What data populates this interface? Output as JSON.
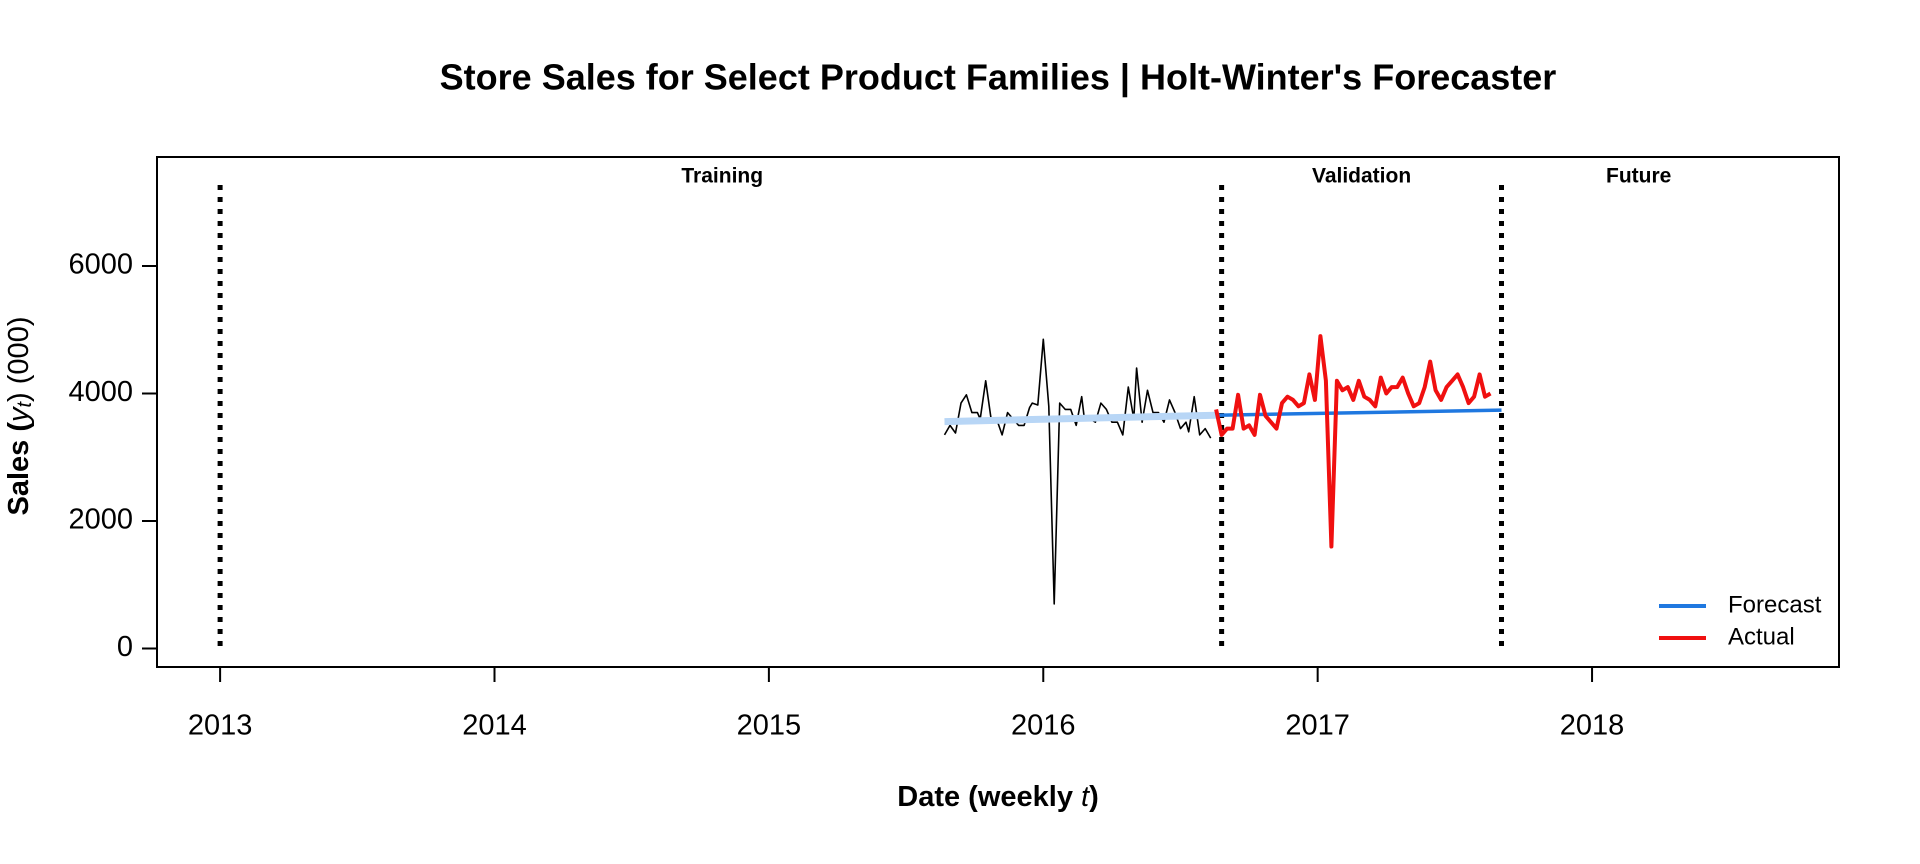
{
  "chart_data": {
    "type": "line",
    "title": "Store Sales for Select Product Families  |  Holt-Winter's Forecaster",
    "xlabel": {
      "pre": "Date (weekly ",
      "var": "t",
      "post": ")"
    },
    "ylabel": {
      "pre": "Sales (",
      "var": "y",
      "sub": "t",
      "post": ") (000)"
    },
    "xlim": [
      2012.77,
      2018.9
    ],
    "xticks": [
      2013,
      2014,
      2015,
      2016,
      2017,
      2018
    ],
    "ylim": [
      -290,
      7710
    ],
    "yticks": [
      0,
      2000,
      4000,
      6000
    ],
    "vlines": [
      2013,
      2016.65,
      2017.67
    ],
    "annotations": [
      {
        "text": "Training",
        "x": 2014.83
      },
      {
        "text": "Validation",
        "x": 2017.16
      },
      {
        "text": "Future",
        "x": 2018.17
      }
    ],
    "legend": "bottom-right",
    "series": [
      {
        "color": "#000000",
        "width": 1.6,
        "x": [
          2015.64,
          2015.66,
          2015.68,
          2015.7,
          2015.72,
          2015.74,
          2015.76,
          2015.77,
          2015.79,
          2015.81,
          2015.83,
          2015.85,
          2015.87,
          2015.89,
          2015.91,
          2015.93,
          2015.95,
          2015.96,
          2015.98,
          2016.0,
          2016.02,
          2016.04,
          2016.06,
          2016.08,
          2016.1,
          2016.12,
          2016.14,
          2016.15,
          2016.17,
          2016.19,
          2016.21,
          2016.23,
          2016.25,
          2016.27,
          2016.29,
          2016.31,
          2016.33,
          2016.34,
          2016.36,
          2016.38,
          2016.4,
          2016.42,
          2016.44,
          2016.46,
          2016.48,
          2016.5,
          2016.52,
          2016.53,
          2016.55,
          2016.57,
          2016.59,
          2016.61
        ],
        "values": [
          3350,
          3500,
          3380,
          3850,
          3980,
          3700,
          3700,
          3600,
          4200,
          3600,
          3600,
          3350,
          3700,
          3600,
          3500,
          3500,
          3780,
          3850,
          3820,
          4850,
          3800,
          700,
          3850,
          3750,
          3750,
          3500,
          3950,
          3600,
          3600,
          3550,
          3850,
          3750,
          3550,
          3550,
          3350,
          4100,
          3600,
          4400,
          3550,
          4050,
          3700,
          3700,
          3550,
          3900,
          3700,
          3450,
          3550,
          3400,
          3950,
          3350,
          3450,
          3300
        ]
      },
      {
        "color": "#b8d6f6",
        "width": 7,
        "x": [
          2015.64,
          2016.63
        ],
        "values": [
          3560,
          3660
        ]
      },
      {
        "name": "Forecast",
        "color": "#1f78e0",
        "width": 3.5,
        "x": [
          2016.63,
          2017.67
        ],
        "values": [
          3660,
          3740
        ]
      },
      {
        "name": "Actual",
        "color": "#f01010",
        "width": 4,
        "x": [
          2016.63,
          2016.65,
          2016.67,
          2016.69,
          2016.71,
          2016.73,
          2016.75,
          2016.77,
          2016.79,
          2016.81,
          2016.83,
          2016.85,
          2016.87,
          2016.89,
          2016.91,
          2016.93,
          2016.95,
          2016.97,
          2016.99,
          2017.01,
          2017.03,
          2017.05,
          2017.07,
          2017.09,
          2017.11,
          2017.13,
          2017.15,
          2017.17,
          2017.19,
          2017.21,
          2017.23,
          2017.25,
          2017.27,
          2017.29,
          2017.31,
          2017.33,
          2017.35,
          2017.37,
          2017.39,
          2017.41,
          2017.43,
          2017.45,
          2017.47,
          2017.49,
          2017.51,
          2017.53,
          2017.55,
          2017.57,
          2017.59,
          2017.61,
          2017.63
        ],
        "values": [
          3750,
          3350,
          3450,
          3450,
          3980,
          3450,
          3500,
          3350,
          3980,
          3650,
          3550,
          3450,
          3850,
          3950,
          3900,
          3800,
          3850,
          4300,
          3900,
          4900,
          4200,
          1600,
          4200,
          4050,
          4100,
          3900,
          4200,
          3950,
          3900,
          3800,
          4250,
          4000,
          4100,
          4100,
          4250,
          4000,
          3800,
          3850,
          4100,
          4500,
          4050,
          3900,
          4100,
          4200,
          4300,
          4100,
          3850,
          3950,
          4300,
          3950,
          4000
        ]
      }
    ]
  }
}
